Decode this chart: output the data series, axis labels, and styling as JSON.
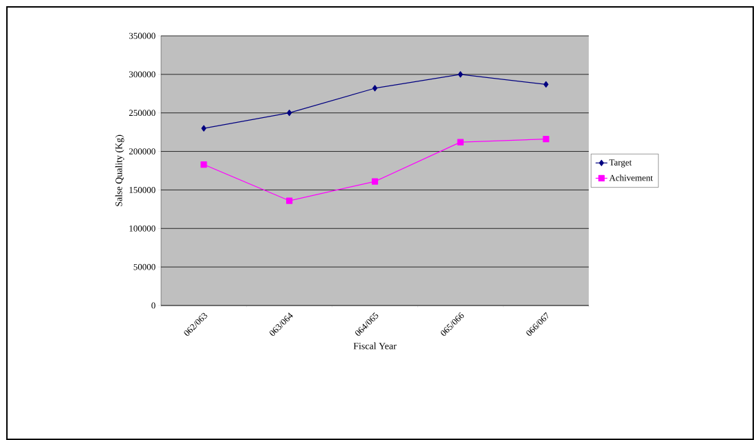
{
  "chart_data": {
    "type": "line",
    "xlabel": "Fiscal Year",
    "ylabel": "Salse Quality (Kg)",
    "categories": [
      "062/063",
      "063/064",
      "064/065",
      "065/066",
      "066/067"
    ],
    "series": [
      {
        "name": "Target",
        "color": "#000080",
        "marker": "diamond",
        "values": [
          230000,
          250000,
          282000,
          300000,
          287000
        ]
      },
      {
        "name": "Achivement",
        "color": "#ff00ff",
        "marker": "square",
        "values": [
          183000,
          136000,
          161000,
          212000,
          216000
        ]
      }
    ],
    "ylim": [
      0,
      350000
    ],
    "yticks": [
      0,
      50000,
      100000,
      150000,
      200000,
      250000,
      300000,
      350000
    ],
    "grid": "y",
    "legend": "right",
    "line_style": "solid"
  }
}
